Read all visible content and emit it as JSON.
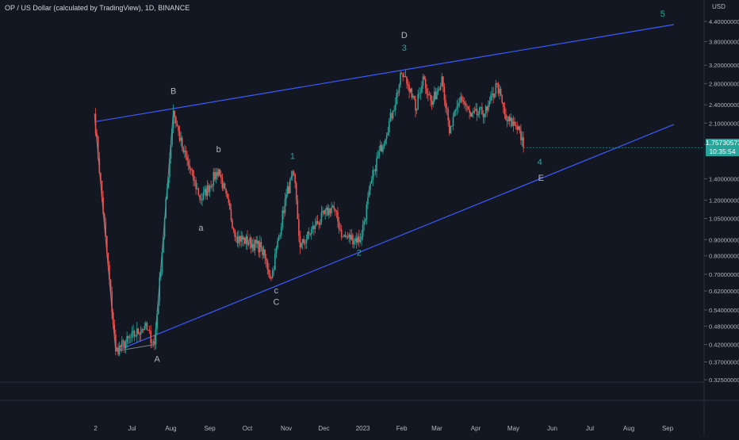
{
  "header": {
    "symbol_line": "OP / US Dollar (calculated by TradingView), 1D, BINANCE"
  },
  "last_price": {
    "value": "1.75730573",
    "countdown": "10:35:54"
  },
  "colors": {
    "background": "#131722",
    "up": "#26a69a",
    "down": "#ef5350",
    "trendline": "#3d5afe",
    "pattern_line": "#787b86",
    "wave_label_green": "#26a69a",
    "wave_label_grey": "#b2b5be",
    "axis_text": "#b2b5be"
  },
  "chart_data": {
    "type": "candlestick",
    "y_axis": {
      "unit_label": "USD",
      "scale": "log",
      "ylim": [
        0.3,
        4.8
      ],
      "ticks": [
        "4.40000000",
        "3.80000000",
        "3.20000000",
        "2.80000000",
        "2.40000000",
        "2.10000000",
        "1.80000000",
        "1.40000000",
        "1.20000000",
        "1.05000000",
        "0.90000000",
        "0.80000000",
        "0.70000000",
        "0.62000000",
        "0.54000000",
        "0.48000000",
        "0.42000000",
        "0.37000000",
        "0.32500000"
      ]
    },
    "x_axis": {
      "ticks": [
        "2",
        "Jul",
        "Aug",
        "Sep",
        "Oct",
        "Nov",
        "Dec",
        "2023",
        "Feb",
        "Mar",
        "Apr",
        "May",
        "Jun",
        "Jul",
        "Aug",
        "Sep"
      ]
    },
    "key_points": [
      {
        "date": "2022-06-01",
        "price": 2.25
      },
      {
        "date": "2022-06-18",
        "price": 0.4
      },
      {
        "date": "2022-07-11",
        "price": 0.48
      },
      {
        "date": "2022-07-19",
        "price": 0.42
      },
      {
        "date": "2022-08-03",
        "price": 2.3
      },
      {
        "date": "2022-08-10",
        "price": 1.75
      },
      {
        "date": "2022-08-25",
        "price": 1.2
      },
      {
        "date": "2022-09-08",
        "price": 1.5
      },
      {
        "date": "2022-09-22",
        "price": 0.92
      },
      {
        "date": "2022-10-12",
        "price": 0.85
      },
      {
        "date": "2022-10-20",
        "price": 0.68
      },
      {
        "date": "2022-11-01",
        "price": 1.25
      },
      {
        "date": "2022-11-07",
        "price": 1.45
      },
      {
        "date": "2022-11-12",
        "price": 0.85
      },
      {
        "date": "2022-11-24",
        "price": 1.0
      },
      {
        "date": "2022-12-08",
        "price": 1.15
      },
      {
        "date": "2022-12-16",
        "price": 0.92
      },
      {
        "date": "2022-12-30",
        "price": 0.9
      },
      {
        "date": "2023-01-10",
        "price": 1.5
      },
      {
        "date": "2023-01-25",
        "price": 2.3
      },
      {
        "date": "2023-02-01",
        "price": 3.0
      },
      {
        "date": "2023-02-08",
        "price": 2.7
      },
      {
        "date": "2023-02-12",
        "price": 2.3
      },
      {
        "date": "2023-02-18",
        "price": 2.95
      },
      {
        "date": "2023-02-25",
        "price": 2.4
      },
      {
        "date": "2023-03-05",
        "price": 2.95
      },
      {
        "date": "2023-03-11",
        "price": 1.95
      },
      {
        "date": "2023-03-20",
        "price": 2.55
      },
      {
        "date": "2023-03-28",
        "price": 2.2
      },
      {
        "date": "2023-04-10",
        "price": 2.3
      },
      {
        "date": "2023-04-18",
        "price": 2.8
      },
      {
        "date": "2023-04-25",
        "price": 2.15
      },
      {
        "date": "2023-05-05",
        "price": 2.05
      },
      {
        "date": "2023-05-09",
        "price": 1.76
      }
    ],
    "trendlines": [
      {
        "from": {
          "date": "2022-06-01",
          "price": 2.12
        },
        "to": {
          "date": "2023-09-06",
          "price": 4.3
        }
      },
      {
        "from": {
          "date": "2022-06-18",
          "price": 0.4
        },
        "to": {
          "date": "2023-09-06",
          "price": 2.08
        }
      }
    ],
    "pattern_path": [
      {
        "date": "2022-06-01",
        "price": 2.25
      },
      {
        "date": "2022-06-18",
        "price": 0.4
      },
      {
        "date": "2022-07-19",
        "price": 0.42
      },
      {
        "date": "2022-08-03",
        "price": 2.3
      },
      {
        "date": "2022-07-19",
        "price": 0.42
      }
    ],
    "annotations": [
      {
        "text": "5",
        "date": "2023-08-28",
        "price": 4.55,
        "style": "green"
      },
      {
        "text": "D",
        "date": "2023-02-03",
        "price": 3.9,
        "style": "grey"
      },
      {
        "text": "3",
        "date": "2023-02-03",
        "price": 3.55,
        "style": "green"
      },
      {
        "text": "B",
        "date": "2022-08-03",
        "price": 2.6,
        "style": "grey"
      },
      {
        "text": "b",
        "date": "2022-09-08",
        "price": 1.7,
        "style": "grey"
      },
      {
        "text": "1",
        "date": "2022-11-06",
        "price": 1.62,
        "style": "green"
      },
      {
        "text": "4",
        "date": "2023-05-22",
        "price": 1.55,
        "style": "green"
      },
      {
        "text": "E",
        "date": "2023-05-23",
        "price": 1.38,
        "style": "grey"
      },
      {
        "text": "a",
        "date": "2022-08-25",
        "price": 0.96,
        "style": "grey"
      },
      {
        "text": "2",
        "date": "2022-12-29",
        "price": 0.8,
        "style": "green"
      },
      {
        "text": "c",
        "date": "2022-10-24",
        "price": 0.61,
        "style": "grey"
      },
      {
        "text": "C",
        "date": "2022-10-24",
        "price": 0.56,
        "style": "grey"
      },
      {
        "text": "A",
        "date": "2022-07-21",
        "price": 0.37,
        "style": "grey"
      }
    ]
  }
}
